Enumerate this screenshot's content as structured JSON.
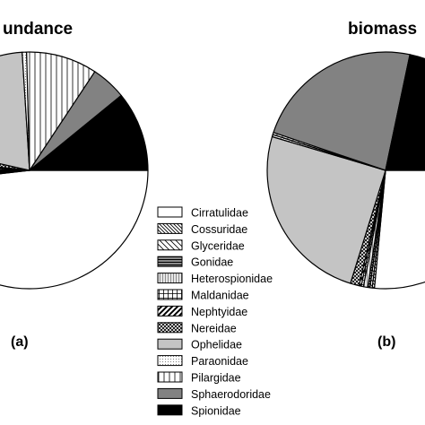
{
  "chart_data": [
    {
      "type": "pie",
      "panel_label": "(a)",
      "title": "undance",
      "unit": "percent",
      "categories": [
        "Cirratulidae",
        "Cossuridae",
        "Glyceridae",
        "Gonidae",
        "Heterospionidae",
        "Maldanidae",
        "Nephtyidae",
        "Nereidae",
        "Ophelidae",
        "Paraonidae",
        "Pilargidae",
        "Sphaerodoridae",
        "Spionidae"
      ],
      "values": [
        48.2,
        0.5,
        0.6,
        0.5,
        0.6,
        0.7,
        0.6,
        1.8,
        20.5,
        0.6,
        9.7,
        4.8,
        10.9
      ]
    },
    {
      "type": "pie",
      "panel_label": "(b)",
      "title": "biomass",
      "unit": "percent",
      "categories": [
        "Cirratulidae",
        "Cossuridae",
        "Glyceridae",
        "Gonidae",
        "Heterospionidae",
        "Maldanidae",
        "Nephtyidae",
        "Nereidae",
        "Ophelidae",
        "Paraonidae",
        "Pilargidae",
        "Sphaerodoridae",
        "Spionidae"
      ],
      "values": [
        26.5,
        0.3,
        0.3,
        0.3,
        0.6,
        0.3,
        0.3,
        1.2,
        24.8,
        0.3,
        0.3,
        23.1,
        21.7
      ]
    }
  ],
  "legend": {
    "entries": [
      {
        "label": "Cirratulidae",
        "pattern": "white"
      },
      {
        "label": "Cossuridae",
        "pattern": "diag-fine-down"
      },
      {
        "label": "Glyceridae",
        "pattern": "diag-sparse-down"
      },
      {
        "label": "Gonidae",
        "pattern": "horiz-dark"
      },
      {
        "label": "Heterospionidae",
        "pattern": "vert-gray"
      },
      {
        "label": "Maldanidae",
        "pattern": "grid"
      },
      {
        "label": "Nephtyidae",
        "pattern": "diag-bold-up"
      },
      {
        "label": "Nereidae",
        "pattern": "crosshatch"
      },
      {
        "label": "Ophelidae",
        "pattern": "lightgray"
      },
      {
        "label": "Paraonidae",
        "pattern": "stipple"
      },
      {
        "label": "Pilargidae",
        "pattern": "vert-lines"
      },
      {
        "label": "Sphaerodoridae",
        "pattern": "darkgray"
      },
      {
        "label": "Spionidae",
        "pattern": "black"
      }
    ]
  },
  "colors": {
    "lightgray": "#c4c4c4",
    "darkgray": "#828282",
    "black": "#000000",
    "white": "#ffffff"
  }
}
